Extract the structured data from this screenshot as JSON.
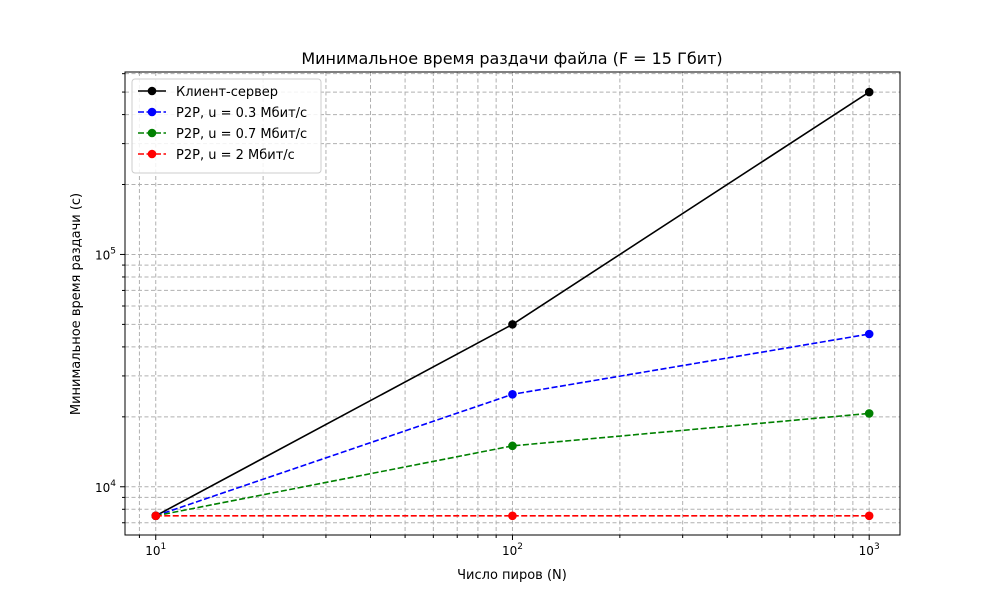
{
  "chart_data": {
    "type": "line",
    "title": "Минимальное время раздачи файла (F = 15 Гбит)",
    "xlabel": "Число пиров (N)",
    "ylabel": "Минимальное время раздачи (с)",
    "x_scale": "log",
    "y_scale": "log",
    "xlim": [
      8.2,
      1220
    ],
    "ylim": [
      6200,
      610000
    ],
    "x_ticks": [
      {
        "value": 10,
        "base": "10",
        "exp": "1"
      },
      {
        "value": 100,
        "base": "10",
        "exp": "2"
      },
      {
        "value": 1000,
        "base": "10",
        "exp": "3"
      }
    ],
    "y_ticks": [
      {
        "value": 10000,
        "base": "10",
        "exp": "4"
      },
      {
        "value": 100000,
        "base": "10",
        "exp": "5"
      }
    ],
    "grid": true,
    "legend_position": "top-left",
    "x": [
      10,
      100,
      1000
    ],
    "series": [
      {
        "name": "Клиент-сервер",
        "values": [
          7500,
          50000,
          500000
        ],
        "color": "#000000",
        "dashed": false
      },
      {
        "name": "P2P, u = 0.3 Мбит/с",
        "values": [
          7500,
          25000,
          45450
        ],
        "color": "#0000ff",
        "dashed": true
      },
      {
        "name": "P2P, u = 0.7 Мбит/с",
        "values": [
          7500,
          15000,
          20690
        ],
        "color": "#008000",
        "dashed": true
      },
      {
        "name": "P2P, u = 2 Мбит/с",
        "values": [
          7500,
          7500,
          7500
        ],
        "color": "#ff0000",
        "dashed": true
      }
    ]
  }
}
